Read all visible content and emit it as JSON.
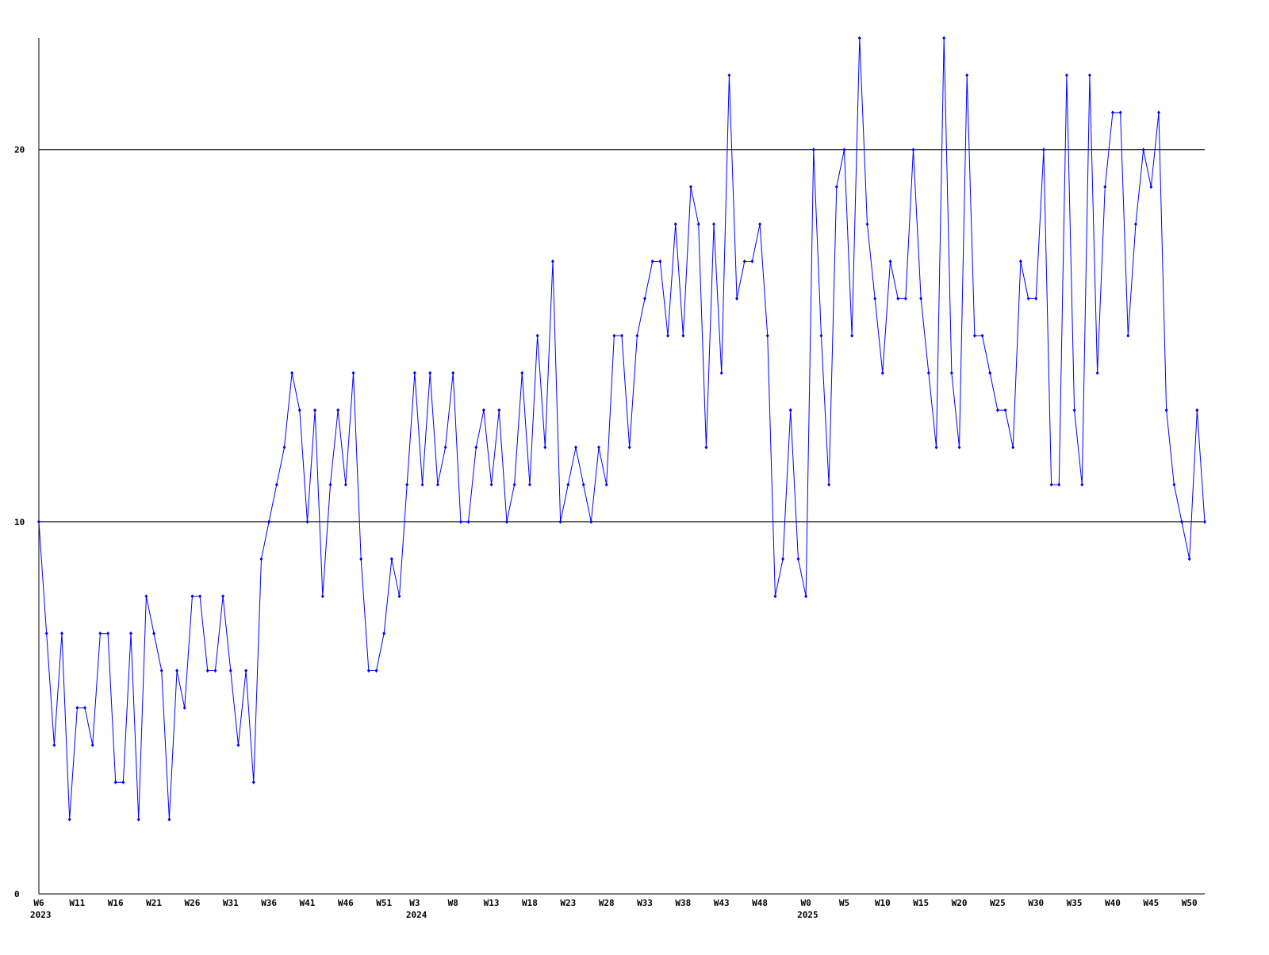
{
  "chart_data": {
    "type": "line",
    "categories": [
      "W6",
      null,
      null,
      null,
      null,
      "W11",
      null,
      null,
      null,
      null,
      "W16",
      null,
      null,
      null,
      null,
      "W21",
      null,
      null,
      null,
      null,
      "W26",
      null,
      null,
      null,
      null,
      "W31",
      null,
      null,
      null,
      null,
      "W36",
      null,
      null,
      null,
      null,
      "W41",
      null,
      null,
      null,
      null,
      "W46",
      null,
      null,
      null,
      null,
      "W51",
      null,
      null,
      null,
      "W3",
      null,
      null,
      null,
      null,
      "W8",
      null,
      null,
      null,
      null,
      "W13",
      null,
      null,
      null,
      null,
      "W18",
      null,
      null,
      null,
      null,
      "W23",
      null,
      null,
      null,
      null,
      "W28",
      null,
      null,
      null,
      null,
      "W33",
      null,
      null,
      null,
      null,
      "W38",
      null,
      null,
      null,
      null,
      "W43",
      null,
      null,
      null,
      null,
      "W48",
      null,
      null,
      null,
      null,
      null,
      "W0",
      null,
      null,
      null,
      null,
      "W5",
      null,
      null,
      null,
      null,
      "W10",
      null,
      null,
      null,
      null,
      "W15",
      null,
      null,
      null,
      null,
      "W20",
      null,
      null,
      null,
      null,
      "W25",
      null,
      null,
      null,
      null,
      "W30",
      null,
      null,
      null,
      null,
      "W35",
      null,
      null,
      null,
      null,
      "W40",
      null,
      null,
      null,
      null,
      "W45",
      null,
      null,
      null,
      null,
      "W50",
      null,
      null
    ],
    "category_years": [
      "2023",
      null,
      null,
      null,
      null,
      null,
      null,
      null,
      null,
      null,
      null,
      null,
      null,
      null,
      null,
      null,
      null,
      null,
      null,
      null,
      null,
      null,
      null,
      null,
      null,
      null,
      null,
      null,
      null,
      null,
      null,
      null,
      null,
      null,
      null,
      null,
      null,
      null,
      null,
      null,
      null,
      null,
      null,
      null,
      null,
      null,
      null,
      null,
      null,
      "2024",
      null,
      null,
      null,
      null,
      null,
      null,
      null,
      null,
      null,
      null,
      null,
      null,
      null,
      null,
      null,
      null,
      null,
      null,
      null,
      null,
      null,
      null,
      null,
      null,
      null,
      null,
      null,
      null,
      null,
      null,
      null,
      null,
      null,
      null,
      null,
      null,
      null,
      null,
      null,
      null,
      null,
      null,
      null,
      null,
      null,
      null,
      null,
      null,
      null,
      null,
      "2025",
      null,
      null,
      null,
      null,
      null,
      null,
      null,
      null,
      null,
      null,
      null,
      null,
      null,
      null,
      null,
      null,
      null,
      null,
      null,
      null,
      null,
      null,
      null,
      null,
      null,
      null,
      null,
      null,
      null,
      null,
      null,
      null,
      null,
      null,
      null,
      null,
      null,
      null,
      null,
      null,
      null,
      null,
      null,
      null,
      null,
      null,
      null,
      null,
      null,
      null,
      null,
      null
    ],
    "values": [
      10,
      7,
      4,
      7,
      2,
      5,
      5,
      4,
      7,
      7,
      3,
      3,
      7,
      2,
      8,
      7,
      6,
      2,
      6,
      5,
      8,
      8,
      6,
      6,
      8,
      6,
      4,
      6,
      3,
      9,
      10,
      11,
      12,
      14,
      13,
      10,
      13,
      8,
      11,
      13,
      11,
      14,
      9,
      6,
      6,
      7,
      9,
      8,
      11,
      14,
      11,
      14,
      11,
      12,
      14,
      10,
      10,
      12,
      13,
      11,
      13,
      10,
      11,
      14,
      11,
      15,
      12,
      17,
      10,
      11,
      12,
      11,
      10,
      12,
      11,
      15,
      15,
      12,
      15,
      16,
      17,
      17,
      15,
      18,
      15,
      19,
      18,
      12,
      18,
      14,
      22,
      16,
      17,
      17,
      18,
      15,
      8,
      9,
      13,
      9,
      8,
      20,
      15,
      11,
      19,
      20,
      15,
      23,
      18,
      16,
      14,
      17,
      16,
      16,
      20,
      16,
      14,
      12,
      23,
      14,
      12,
      22,
      15,
      15,
      14,
      13,
      13,
      12,
      17,
      16,
      16,
      20,
      11,
      11,
      22,
      13,
      11,
      22,
      14,
      19,
      21,
      21,
      15,
      18,
      20,
      19,
      21,
      13,
      11,
      10,
      9,
      13,
      10
    ],
    "color": "#0000ff",
    "ylim": [
      0,
      23
    ],
    "yticks": [
      0,
      10,
      20
    ],
    "grid": true
  }
}
